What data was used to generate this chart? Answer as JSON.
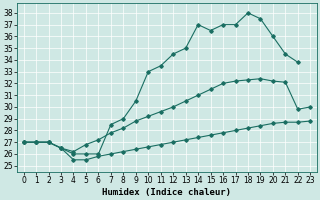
{
  "xlabel": "Humidex (Indice chaleur)",
  "bg_color": "#cfe8e4",
  "line_color": "#1a6e62",
  "xlim": [
    -0.5,
    23.5
  ],
  "ylim": [
    24.5,
    38.8
  ],
  "yticks": [
    25,
    26,
    27,
    28,
    29,
    30,
    31,
    32,
    33,
    34,
    35,
    36,
    37,
    38
  ],
  "xticks": [
    0,
    1,
    2,
    3,
    4,
    5,
    6,
    7,
    8,
    9,
    10,
    11,
    12,
    13,
    14,
    15,
    16,
    17,
    18,
    19,
    20,
    21,
    22,
    23
  ],
  "line1_x": [
    0,
    1,
    2,
    3,
    4,
    5,
    6,
    7,
    8,
    9,
    10,
    11,
    12,
    13,
    14,
    15,
    16,
    17,
    18,
    19,
    20,
    21,
    22
  ],
  "line1_y": [
    27.0,
    27.0,
    27.0,
    26.5,
    26.0,
    26.0,
    26.0,
    28.5,
    29.0,
    30.5,
    33.0,
    33.5,
    34.5,
    35.0,
    37.0,
    36.5,
    37.0,
    37.0,
    38.0,
    37.5,
    36.0,
    34.5,
    33.8
  ],
  "line2_x": [
    0,
    1,
    2,
    3,
    4,
    5,
    6,
    7,
    8,
    9,
    10,
    11,
    12,
    13,
    14,
    15,
    16,
    17,
    18,
    19,
    20,
    21,
    22,
    23
  ],
  "line2_y": [
    27.0,
    27.0,
    27.0,
    26.5,
    26.2,
    26.8,
    27.2,
    27.8,
    28.2,
    28.8,
    29.2,
    29.6,
    30.0,
    30.5,
    31.0,
    31.5,
    32.0,
    32.2,
    32.3,
    32.4,
    32.2,
    32.1,
    29.8,
    30.0
  ],
  "line3_x": [
    0,
    1,
    2,
    3,
    4,
    5,
    6,
    7,
    8,
    9,
    10,
    11,
    12,
    13,
    14,
    15,
    16,
    17,
    18,
    19,
    20,
    21,
    22,
    23
  ],
  "line3_y": [
    27.0,
    27.0,
    27.0,
    26.5,
    25.5,
    25.5,
    25.8,
    26.0,
    26.2,
    26.4,
    26.6,
    26.8,
    27.0,
    27.2,
    27.4,
    27.6,
    27.8,
    28.0,
    28.2,
    28.4,
    28.6,
    28.7,
    28.7,
    28.8
  ]
}
